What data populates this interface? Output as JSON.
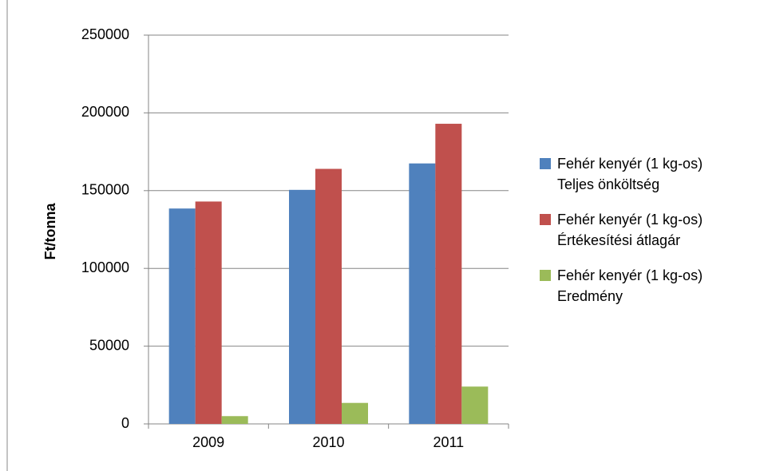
{
  "chart_data": {
    "type": "bar",
    "y_label": "Ft/tonna",
    "categories": [
      "2009",
      "2010",
      "2011"
    ],
    "series": [
      {
        "name": "Fehér kenyér (1 kg-os) Teljes önköltség",
        "color": "#4f81bd",
        "values": [
          138500,
          150500,
          167500
        ]
      },
      {
        "name": "Fehér kenyér (1 kg-os) Értékesítési átlagár",
        "color": "#c0504d",
        "values": [
          143000,
          164000,
          193000
        ]
      },
      {
        "name": "Fehér kenyér (1 kg-os) Eredmény",
        "color": "#9bbb59",
        "values": [
          5000,
          13500,
          24000
        ]
      }
    ],
    "ylim": [
      0,
      250000
    ],
    "yticks": [
      0,
      50000,
      100000,
      150000,
      200000,
      250000
    ],
    "grid": true
  }
}
